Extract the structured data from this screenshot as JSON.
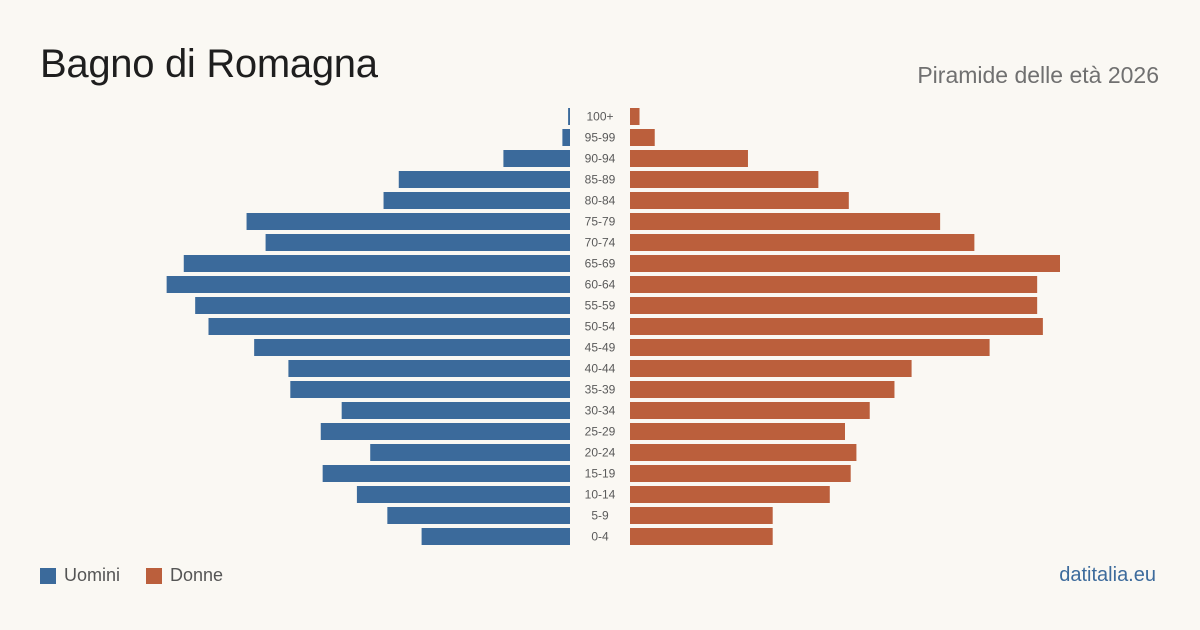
{
  "title": "Bagno di Romagna",
  "subtitle": "Piramide delle età 2026",
  "brand": "datitalia.eu",
  "legend": {
    "men_label": "Uomini",
    "women_label": "Donne"
  },
  "colors": {
    "men": "#3b6a9b",
    "women": "#bb5f3c",
    "background": "#faf8f3"
  },
  "chart_data": {
    "type": "bar",
    "orientation": "horizontal-pyramid",
    "categories": [
      "100+",
      "95-99",
      "90-94",
      "85-89",
      "80-84",
      "75-79",
      "70-74",
      "65-69",
      "60-64",
      "55-59",
      "50-54",
      "45-49",
      "40-44",
      "35-39",
      "30-34",
      "25-29",
      "20-24",
      "15-19",
      "10-14",
      "5-9",
      "0-4"
    ],
    "series": [
      {
        "name": "Uomini",
        "values": [
          1,
          4,
          35,
          90,
          98,
          170,
          160,
          203,
          212,
          197,
          190,
          166,
          148,
          147,
          120,
          131,
          105,
          130,
          112,
          96,
          78
        ]
      },
      {
        "name": "Donne",
        "values": [
          5,
          13,
          62,
          99,
          115,
          163,
          181,
          226,
          214,
          214,
          217,
          189,
          148,
          139,
          126,
          113,
          119,
          116,
          105,
          75,
          75
        ]
      }
    ],
    "xlim": [
      0,
      226
    ]
  }
}
